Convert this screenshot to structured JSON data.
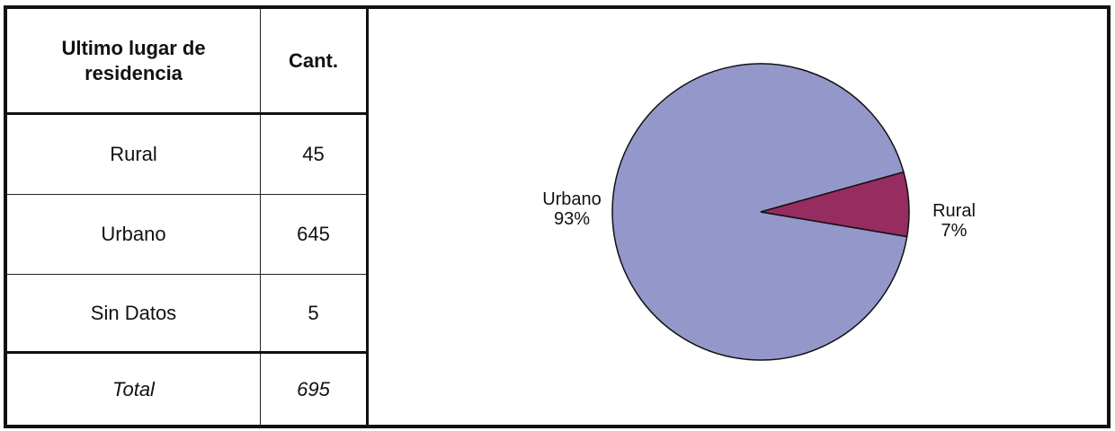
{
  "table": {
    "headers": [
      "Ultimo lugar de residencia",
      "Cant."
    ],
    "rows": [
      {
        "label": "Rural",
        "value": "45"
      },
      {
        "label": "Urbano",
        "value": "645"
      },
      {
        "label": "Sin Datos",
        "value": "5"
      }
    ],
    "total": {
      "label": "Total",
      "value": "695"
    }
  },
  "chart_data": {
    "type": "pie",
    "categories": [
      "Urbano",
      "Rural"
    ],
    "values": [
      93,
      7
    ],
    "labels": [
      {
        "name": "Urbano",
        "percent": "93%"
      },
      {
        "name": "Rural",
        "percent": "7%"
      }
    ],
    "colors": {
      "Urbano": "#9497c9",
      "Rural": "#962c60"
    }
  }
}
